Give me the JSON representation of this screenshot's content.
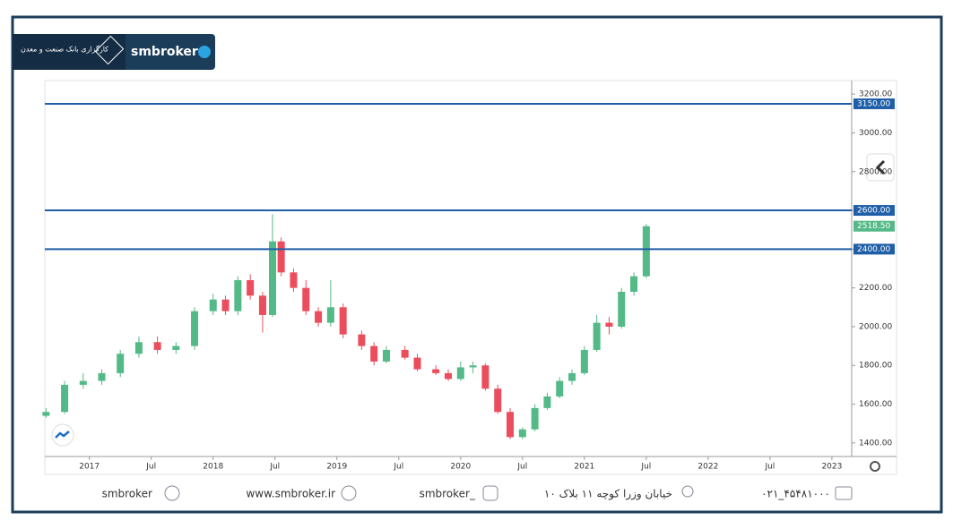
{
  "brand": {
    "name_fa": "کارگزاری بانک صنعت و معدن",
    "name": "smbroker"
  },
  "chart_data": {
    "type": "candlestick",
    "x": [
      2016.65,
      2016.8,
      2016.95,
      2017.1,
      2017.25,
      2017.4,
      2017.55,
      2017.7,
      2017.85,
      2018.0,
      2018.1,
      2018.2,
      2018.3,
      2018.4,
      2018.48,
      2018.55,
      2018.65,
      2018.75,
      2018.85,
      2018.95,
      2019.05,
      2019.2,
      2019.3,
      2019.4,
      2019.55,
      2019.65,
      2019.8,
      2019.9,
      2020.0,
      2020.1,
      2020.2,
      2020.3,
      2020.4,
      2020.5,
      2020.6,
      2020.7,
      2020.8,
      2020.9,
      2021.0,
      2021.1,
      2021.2,
      2021.3,
      2021.4,
      2021.5
    ],
    "open": [
      1540,
      1560,
      1700,
      1720,
      1760,
      1860,
      1920,
      1880,
      1900,
      2080,
      2140,
      2080,
      2240,
      2160,
      2060,
      2440,
      2280,
      2200,
      2080,
      2020,
      2100,
      1960,
      1900,
      1820,
      1880,
      1840,
      1780,
      1760,
      1730,
      1790,
      1800,
      1680,
      1560,
      1430,
      1470,
      1580,
      1640,
      1720,
      1760,
      1880,
      2020,
      2000,
      2180,
      2260
    ],
    "high": [
      1580,
      1720,
      1760,
      1780,
      1880,
      1950,
      1950,
      1920,
      2100,
      2170,
      2160,
      2260,
      2270,
      2180,
      2580,
      2460,
      2300,
      2240,
      2100,
      2240,
      2120,
      1980,
      1920,
      1900,
      1900,
      1860,
      1800,
      1780,
      1820,
      1820,
      1810,
      1700,
      1580,
      1480,
      1600,
      1660,
      1740,
      1780,
      1900,
      2060,
      2050,
      2200,
      2280,
      2530
    ],
    "low": [
      1530,
      1550,
      1680,
      1700,
      1740,
      1840,
      1860,
      1860,
      1880,
      2060,
      2060,
      2060,
      2140,
      1970,
      2050,
      2260,
      2180,
      2060,
      2000,
      2000,
      1940,
      1880,
      1800,
      1810,
      1830,
      1770,
      1750,
      1720,
      1720,
      1760,
      1670,
      1550,
      1420,
      1420,
      1460,
      1570,
      1630,
      1700,
      1750,
      1870,
      1960,
      1990,
      2160,
      2250
    ],
    "close": [
      1560,
      1700,
      1720,
      1760,
      1860,
      1920,
      1880,
      1900,
      2080,
      2140,
      2080,
      2240,
      2160,
      2060,
      2440,
      2280,
      2200,
      2080,
      2020,
      2100,
      1960,
      1900,
      1820,
      1880,
      1840,
      1780,
      1760,
      1730,
      1790,
      1800,
      1680,
      1560,
      1430,
      1470,
      1580,
      1640,
      1720,
      1760,
      1880,
      2020,
      2000,
      2180,
      2260,
      2518.5
    ],
    "up_color": "#53b987",
    "down_color": "#eb4d5c",
    "xlim": [
      2016.64,
      2023.16
    ],
    "xticks": [
      {
        "value": 2017,
        "label": "2017"
      },
      {
        "value": 2017.5,
        "label": "Jul"
      },
      {
        "value": 2018,
        "label": "2018"
      },
      {
        "value": 2018.5,
        "label": "Jul"
      },
      {
        "value": 2019,
        "label": "2019"
      },
      {
        "value": 2019.5,
        "label": "Jul"
      },
      {
        "value": 2020,
        "label": "2020"
      },
      {
        "value": 2020.5,
        "label": "Jul"
      },
      {
        "value": 2021,
        "label": "2021"
      },
      {
        "value": 2021.5,
        "label": "Jul"
      },
      {
        "value": 2022,
        "label": "2022"
      },
      {
        "value": 2022.5,
        "label": "Jul"
      },
      {
        "value": 2023,
        "label": "2023"
      }
    ],
    "ylim": [
      1330,
      3270
    ],
    "yticks": [
      {
        "value": 1400,
        "label": "1400.00"
      },
      {
        "value": 1600,
        "label": "1600.00"
      },
      {
        "value": 1800,
        "label": "1800.00"
      },
      {
        "value": 2000,
        "label": "2000.00"
      },
      {
        "value": 2200,
        "label": "2200.00"
      },
      {
        "value": 2400,
        "label": "2400.00"
      },
      {
        "value": 2600,
        "label": "2600.00"
      },
      {
        "value": 2800,
        "label": "2800.00"
      },
      {
        "value": 3000,
        "label": "3000.00"
      },
      {
        "value": 3200,
        "label": "3200.00"
      }
    ],
    "levels": [
      {
        "value": 3150,
        "label": "3150.00"
      },
      {
        "value": 2600,
        "label": "2600.00"
      },
      {
        "value": 2400,
        "label": "2400.00"
      }
    ],
    "level_color": "#1f5fa8",
    "last_price": {
      "value": 2518.5,
      "label": "2518.50"
    }
  },
  "footer": {
    "telegram": "smbroker",
    "website": "www.smbroker.ir",
    "instagram": "smbroker_",
    "address": "خیابان وزرا کوچه ۱۱ بلاک ۱۰",
    "phone": "۰۲۱_۴۵۴۸۱۰۰۰"
  }
}
